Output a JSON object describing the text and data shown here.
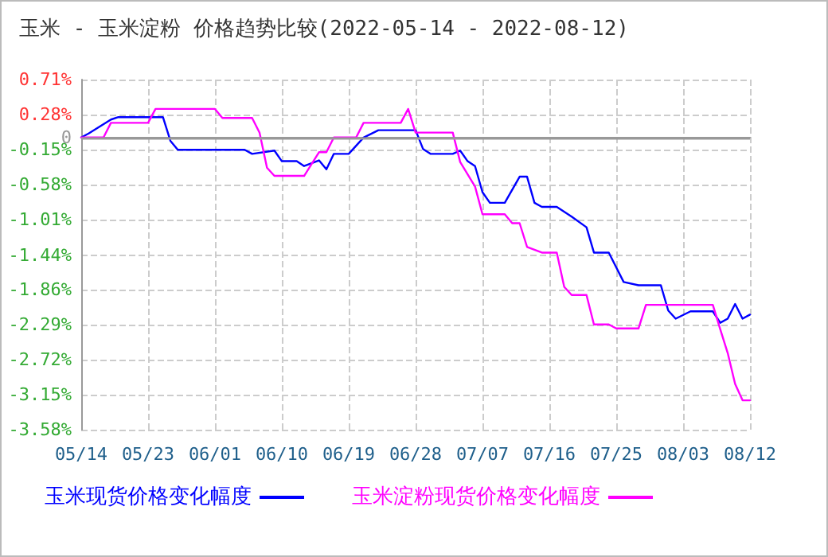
{
  "chart_data": {
    "type": "line",
    "title": "玉米 - 玉米淀粉 价格趋势比较(2022-05-14 - 2022-08-12)",
    "xlim": [
      "2022-05-14",
      "2022-08-12"
    ],
    "xticks": [
      {
        "value": "2022-05-14",
        "label": "05/14"
      },
      {
        "value": "2022-05-23",
        "label": "05/23"
      },
      {
        "value": "2022-06-01",
        "label": "06/01"
      },
      {
        "value": "2022-06-10",
        "label": "06/10"
      },
      {
        "value": "2022-06-19",
        "label": "06/19"
      },
      {
        "value": "2022-06-28",
        "label": "06/28"
      },
      {
        "value": "2022-07-07",
        "label": "07/07"
      },
      {
        "value": "2022-07-16",
        "label": "07/16"
      },
      {
        "value": "2022-07-25",
        "label": "07/25"
      },
      {
        "value": "2022-08-03",
        "label": "08/03"
      },
      {
        "value": "2022-08-12",
        "label": "08/12"
      }
    ],
    "ylim": [
      -3.58,
      0.71
    ],
    "yticks": [
      {
        "value": 0.71,
        "label": "0.71%"
      },
      {
        "value": 0.28,
        "label": "0.28%"
      },
      {
        "value": 0,
        "label": "0"
      },
      {
        "value": -0.15,
        "label": "-0.15%"
      },
      {
        "value": -0.58,
        "label": "-0.58%"
      },
      {
        "value": -1.01,
        "label": "-1.01%"
      },
      {
        "value": -1.44,
        "label": "-1.44%"
      },
      {
        "value": -1.86,
        "label": "-1.86%"
      },
      {
        "value": -2.29,
        "label": "-2.29%"
      },
      {
        "value": -2.72,
        "label": "-2.72%"
      },
      {
        "value": -3.15,
        "label": "-3.15%"
      },
      {
        "value": -3.58,
        "label": "-3.58%"
      }
    ],
    "grid": true,
    "legend": "bottom",
    "marker": "none",
    "line_style": "solid",
    "ref_lines": [
      {
        "axis": "y",
        "value": 0,
        "color": "#999999"
      }
    ],
    "series": [
      {
        "name": "玉米现货价格变化幅度",
        "color": "#0000ff",
        "x": [
          "2022-05-14",
          "2022-05-15",
          "2022-05-18",
          "2022-05-19",
          "2022-05-25",
          "2022-05-26",
          "2022-05-27",
          "2022-06-05",
          "2022-06-06",
          "2022-06-09",
          "2022-06-10",
          "2022-06-12",
          "2022-06-13",
          "2022-06-15",
          "2022-06-16",
          "2022-06-17",
          "2022-06-19",
          "2022-06-21",
          "2022-06-23",
          "2022-06-28",
          "2022-06-29",
          "2022-06-30",
          "2022-07-03",
          "2022-07-04",
          "2022-07-05",
          "2022-07-06",
          "2022-07-07",
          "2022-07-08",
          "2022-07-10",
          "2022-07-12",
          "2022-07-13",
          "2022-07-14",
          "2022-07-15",
          "2022-07-17",
          "2022-07-19",
          "2022-07-21",
          "2022-07-22",
          "2022-07-24",
          "2022-07-26",
          "2022-07-28",
          "2022-07-31",
          "2022-08-01",
          "2022-08-02",
          "2022-08-04",
          "2022-08-07",
          "2022-08-08",
          "2022-08-09",
          "2022-08-10",
          "2022-08-11",
          "2022-08-12"
        ],
        "values": [
          0,
          0.05,
          0.22,
          0.25,
          0.25,
          -0.04,
          -0.15,
          -0.15,
          -0.2,
          -0.16,
          -0.29,
          -0.29,
          -0.35,
          -0.28,
          -0.39,
          -0.2,
          -0.2,
          0,
          0.09,
          0.09,
          -0.14,
          -0.2,
          -0.2,
          -0.16,
          -0.29,
          -0.35,
          -0.67,
          -0.8,
          -0.8,
          -0.48,
          -0.48,
          -0.8,
          -0.85,
          -0.85,
          -0.97,
          -1.1,
          -1.41,
          -1.41,
          -1.77,
          -1.81,
          -1.81,
          -2.12,
          -2.22,
          -2.13,
          -2.13,
          -2.27,
          -2.22,
          -2.04,
          -2.22,
          -2.17
        ]
      },
      {
        "name": "玉米淀粉现货价格变化幅度",
        "color": "#ff00ff",
        "x": [
          "2022-05-14",
          "2022-05-17",
          "2022-05-18",
          "2022-05-23",
          "2022-05-24",
          "2022-06-01",
          "2022-06-02",
          "2022-06-06",
          "2022-06-07",
          "2022-06-08",
          "2022-06-09",
          "2022-06-13",
          "2022-06-15",
          "2022-06-16",
          "2022-06-17",
          "2022-06-20",
          "2022-06-21",
          "2022-06-26",
          "2022-06-27",
          "2022-06-28",
          "2022-07-03",
          "2022-07-04",
          "2022-07-06",
          "2022-07-07",
          "2022-07-10",
          "2022-07-11",
          "2022-07-12",
          "2022-07-13",
          "2022-07-15",
          "2022-07-17",
          "2022-07-18",
          "2022-07-19",
          "2022-07-21",
          "2022-07-22",
          "2022-07-24",
          "2022-07-25",
          "2022-07-28",
          "2022-07-29",
          "2022-08-07",
          "2022-08-08",
          "2022-08-09",
          "2022-08-10",
          "2022-08-11",
          "2022-08-12"
        ],
        "values": [
          0,
          0,
          0.18,
          0.18,
          0.35,
          0.35,
          0.24,
          0.24,
          0.06,
          -0.37,
          -0.47,
          -0.47,
          -0.18,
          -0.18,
          0,
          0,
          0.18,
          0.18,
          0.35,
          0.06,
          0.06,
          -0.3,
          -0.6,
          -0.94,
          -0.94,
          -1.05,
          -1.05,
          -1.34,
          -1.41,
          -1.41,
          -1.83,
          -1.93,
          -1.93,
          -2.29,
          -2.29,
          -2.34,
          -2.34,
          -2.05,
          -2.05,
          -2.35,
          -2.64,
          -3.02,
          -3.22,
          -3.22
        ]
      }
    ]
  }
}
